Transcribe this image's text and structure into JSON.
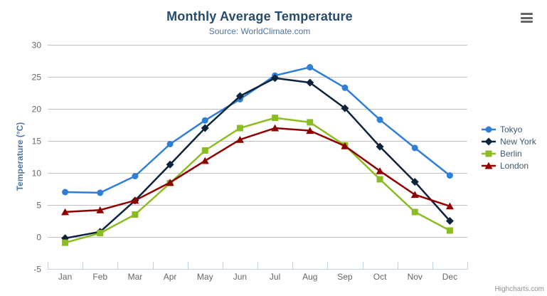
{
  "credit": "Highcharts.com",
  "export_menu": {
    "icon": "hamburger-menu-icon"
  },
  "colors": {
    "title": "#274b6d",
    "subtitle": "#4d759e",
    "axis_label": "#666666",
    "axis_line": "#c0d0e0",
    "gridline": "#c0c0c0",
    "legend_text": "#3e576f",
    "credit": "#909090",
    "burger": "#666666"
  },
  "chart_data": {
    "type": "line",
    "title": "Monthly Average Temperature",
    "subtitle": "Source: WorldClimate.com",
    "categories": [
      "Jan",
      "Feb",
      "Mar",
      "Apr",
      "May",
      "Jun",
      "Jul",
      "Aug",
      "Sep",
      "Oct",
      "Nov",
      "Dec"
    ],
    "xlabel": "",
    "ylabel": "Temperature (°C)",
    "ylim": [
      -5,
      30
    ],
    "ytick_step": 5,
    "grid": true,
    "legend_position": "right",
    "series": [
      {
        "name": "Tokyo",
        "color": "#2f7ed8",
        "marker": "circle",
        "values": [
          7.0,
          6.9,
          9.5,
          14.5,
          18.2,
          21.5,
          25.2,
          26.5,
          23.3,
          18.3,
          13.9,
          9.6
        ]
      },
      {
        "name": "New York",
        "color": "#0d233a",
        "marker": "diamond",
        "values": [
          -0.2,
          0.8,
          5.7,
          11.3,
          17.0,
          22.0,
          24.8,
          24.1,
          20.1,
          14.1,
          8.6,
          2.5
        ]
      },
      {
        "name": "Berlin",
        "color": "#8bbc21",
        "marker": "square",
        "values": [
          -0.9,
          0.6,
          3.5,
          8.4,
          13.5,
          17.0,
          18.6,
          17.9,
          14.3,
          9.0,
          3.9,
          1.0
        ]
      },
      {
        "name": "London",
        "color": "#910000",
        "marker": "triangle",
        "values": [
          3.9,
          4.2,
          5.7,
          8.5,
          11.9,
          15.2,
          17.0,
          16.6,
          14.2,
          10.3,
          6.6,
          4.8
        ]
      }
    ]
  }
}
